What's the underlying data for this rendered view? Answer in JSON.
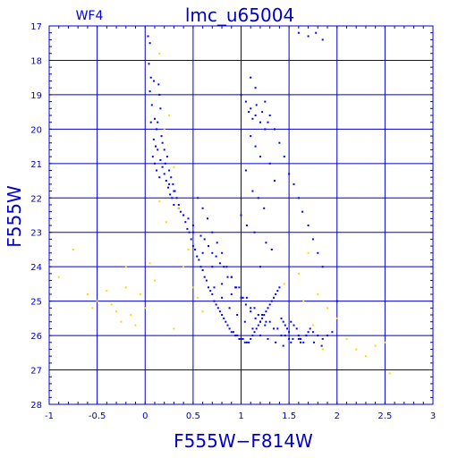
{
  "chart_data": {
    "type": "scatter",
    "title": "lmc_u65004",
    "panel_label": "WF4",
    "xlabel": "F555W−F814W",
    "ylabel": "F555W",
    "xlim": [
      -1,
      3
    ],
    "ylim": [
      28,
      17
    ],
    "y_inverted": true,
    "grid": true,
    "x_ticks": [
      -1,
      -0.5,
      0,
      0.5,
      1,
      1.5,
      2,
      2.5,
      3
    ],
    "y_ticks": [
      17,
      18,
      19,
      20,
      21,
      22,
      23,
      24,
      25,
      26,
      27,
      28
    ],
    "x_tick_labels": [
      "-1",
      "-0.5",
      "0",
      "0.5",
      "1",
      "1.5",
      "2",
      "2.5",
      "3"
    ],
    "y_tick_labels": [
      "17",
      "18",
      "19",
      "20",
      "21",
      "22",
      "23",
      "24",
      "25",
      "26",
      "27",
      "28"
    ],
    "colors": {
      "axes": "#0000cc",
      "main_stars": "#0000ff",
      "other_stars": "#ffd700"
    },
    "series": [
      {
        "color": "#0000ff",
        "x": [
          0.03,
          0.05,
          0.04,
          0.06,
          0.05,
          0.07,
          0.1,
          0.12,
          0.09,
          0.14,
          0.15,
          0.16,
          0.13,
          0.17,
          0.11,
          0.08,
          0.1,
          0.12,
          0.15,
          0.06,
          0.09,
          0.13,
          0.16,
          0.18,
          0.2,
          0.22,
          0.24,
          0.26,
          0.28,
          0.3,
          0.18,
          0.2,
          0.23,
          0.21,
          0.25,
          0.27,
          0.29,
          0.31,
          0.33,
          0.35,
          0.37,
          0.4,
          0.42,
          0.44,
          0.46,
          0.48,
          0.5,
          0.52,
          0.54,
          0.56,
          0.58,
          0.6,
          0.62,
          0.64,
          0.66,
          0.68,
          0.7,
          0.72,
          0.74,
          0.76,
          0.78,
          0.8,
          0.82,
          0.84,
          0.86,
          0.88,
          0.9,
          0.92,
          0.94,
          0.96,
          0.98,
          1.0,
          1.02,
          1.04,
          1.06,
          1.08,
          1.1,
          1.12,
          1.14,
          1.16,
          1.18,
          1.2,
          1.22,
          1.24,
          1.26,
          1.28,
          1.3,
          1.32,
          1.34,
          1.36,
          1.38,
          1.4,
          1.42,
          1.44,
          1.46,
          1.48,
          1.5,
          1.52,
          1.55,
          1.58,
          1.6,
          1.62,
          1.65,
          1.68,
          1.7,
          1.72,
          1.75,
          1.8,
          1.85,
          1.9,
          1.95,
          0.55,
          0.6,
          0.65,
          0.7,
          0.75,
          0.8,
          0.85,
          0.9,
          0.95,
          1.0,
          1.05,
          1.1,
          1.15,
          1.2,
          1.25,
          0.62,
          0.7,
          0.78,
          0.86,
          0.94,
          1.02,
          1.1,
          1.18,
          1.26,
          1.34,
          1.42,
          1.5,
          0.5,
          0.58,
          0.66,
          0.74,
          0.82,
          0.9,
          0.98,
          1.06,
          1.14,
          1.22,
          1.3,
          1.38,
          1.46,
          1.54,
          1.62,
          0.72,
          0.8,
          0.88,
          0.96,
          1.04,
          1.12,
          1.2,
          1.28,
          1.36,
          1.44,
          1.52,
          1.6,
          1.68,
          1.76,
          1.84,
          1.0,
          1.05,
          1.1,
          1.15,
          1.2,
          1.25,
          1.08,
          1.12,
          1.16,
          1.22,
          1.28,
          1.1,
          1.15,
          1.2,
          1.05,
          1.3,
          1.35,
          1.12,
          1.18,
          1.24,
          1.0,
          1.06,
          1.14,
          1.26,
          1.32,
          1.2,
          1.1,
          1.15,
          1.25,
          1.3,
          1.35,
          1.4,
          1.45,
          1.5,
          1.55,
          1.6,
          1.64,
          1.7,
          1.75,
          1.8,
          1.85,
          2.0,
          0.35,
          0.45,
          0.5,
          0.6,
          0.7,
          0.8,
          0.9,
          0.25,
          0.3,
          0.4,
          1.6,
          1.7,
          1.78,
          1.85
        ],
        "y": [
          17.3,
          17.5,
          18.1,
          18.5,
          18.9,
          19.3,
          19.7,
          20.0,
          18.6,
          18.7,
          19.0,
          19.4,
          19.8,
          20.2,
          20.5,
          20.8,
          21.0,
          21.2,
          21.4,
          19.8,
          20.3,
          20.6,
          20.9,
          21.1,
          21.3,
          21.5,
          21.7,
          21.9,
          22.0,
          22.2,
          20.4,
          20.6,
          20.8,
          21.0,
          21.2,
          21.4,
          21.6,
          21.8,
          22.0,
          22.2,
          22.4,
          22.5,
          22.7,
          22.9,
          23.0,
          23.2,
          23.4,
          23.5,
          23.7,
          23.8,
          24.0,
          24.1,
          24.3,
          24.4,
          24.6,
          24.7,
          24.8,
          25.0,
          25.1,
          25.2,
          25.3,
          25.4,
          25.5,
          25.6,
          25.7,
          25.8,
          25.9,
          25.9,
          26.0,
          26.0,
          26.1,
          26.1,
          26.1,
          26.2,
          26.2,
          26.2,
          26.1,
          26.0,
          25.9,
          25.8,
          25.7,
          25.6,
          25.5,
          25.4,
          25.3,
          25.2,
          25.1,
          25.0,
          24.9,
          24.8,
          24.7,
          24.6,
          25.5,
          25.6,
          25.7,
          25.8,
          25.9,
          25.6,
          25.7,
          25.8,
          26.0,
          26.1,
          26.2,
          26.0,
          25.9,
          25.8,
          25.9,
          26.0,
          26.1,
          26.0,
          25.9,
          22.0,
          22.3,
          22.6,
          23.0,
          23.3,
          23.6,
          24.0,
          24.3,
          24.6,
          24.9,
          25.1,
          25.3,
          25.5,
          25.6,
          25.7,
          23.2,
          23.6,
          23.9,
          24.3,
          24.6,
          24.9,
          25.2,
          25.4,
          25.6,
          25.8,
          26.0,
          26.1,
          22.8,
          23.1,
          23.4,
          23.7,
          24.0,
          24.3,
          24.6,
          24.9,
          25.2,
          25.4,
          25.6,
          25.8,
          26.0,
          26.1,
          26.2,
          24.6,
          24.9,
          25.2,
          25.4,
          25.6,
          25.8,
          26.0,
          26.1,
          26.2,
          26.3,
          26.2,
          26.1,
          26.0,
          26.2,
          26.3,
          19.0,
          19.2,
          19.4,
          19.6,
          19.8,
          20.0,
          19.5,
          19.7,
          19.3,
          19.5,
          19.8,
          20.2,
          20.5,
          20.8,
          21.2,
          21.0,
          21.5,
          21.8,
          22.0,
          22.3,
          22.5,
          22.8,
          23.0,
          23.3,
          23.5,
          24.0,
          18.5,
          18.8,
          19.2,
          19.6,
          20.0,
          20.4,
          20.8,
          21.3,
          21.6,
          22.0,
          22.4,
          22.8,
          23.2,
          23.6,
          24.0,
          25.0,
          22.3,
          22.6,
          23.0,
          23.6,
          24.0,
          24.5,
          24.8,
          21.6,
          21.8,
          22.5,
          17.2,
          17.3,
          17.2,
          17.4
        ]
      },
      {
        "color": "#ffd700",
        "x": [
          -0.9,
          -0.75,
          -0.6,
          -0.5,
          -0.4,
          -0.35,
          -0.3,
          -0.25,
          -0.2,
          -0.15,
          -0.1,
          -0.05,
          0.0,
          0.05,
          0.1,
          0.15,
          0.2,
          0.25,
          0.3,
          0.35,
          0.4,
          0.45,
          0.5,
          0.55,
          0.6,
          1.6,
          1.7,
          1.8,
          1.9,
          2.0,
          2.1,
          2.2,
          2.3,
          2.4,
          2.5,
          2.55,
          1.65,
          1.75,
          1.85,
          1.45,
          0.15,
          0.22,
          0.3,
          -0.55,
          -0.2
        ],
        "y": [
          24.3,
          23.5,
          24.8,
          25.0,
          24.7,
          25.1,
          25.3,
          25.6,
          24.0,
          25.4,
          25.7,
          24.8,
          25.2,
          23.9,
          24.4,
          17.8,
          20.0,
          19.6,
          21.1,
          22.3,
          24.0,
          23.5,
          24.6,
          24.9,
          25.3,
          24.2,
          23.6,
          24.8,
          25.2,
          25.5,
          26.1,
          26.4,
          26.6,
          26.3,
          26.2,
          27.1,
          25.0,
          25.7,
          26.4,
          24.5,
          22.1,
          22.7,
          25.8,
          25.2,
          24.6
        ]
      }
    ]
  }
}
